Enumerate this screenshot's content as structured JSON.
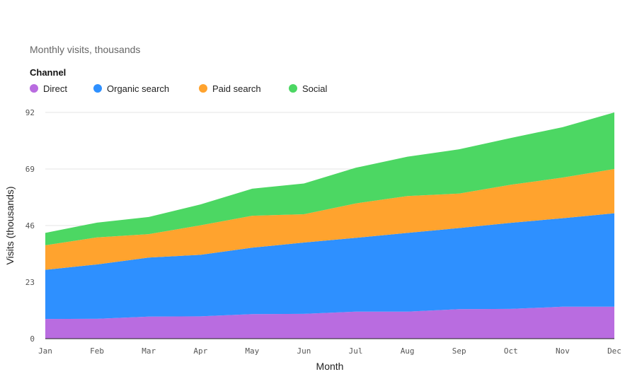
{
  "chart_data": {
    "type": "area",
    "stacked": true,
    "title": "Monthly visits, thousands",
    "legend_title": "Channel",
    "legend_position": "top-left",
    "xlabel": "Month",
    "ylabel": "Visits (thousands)",
    "ylim": [
      0,
      92
    ],
    "yticks": [
      0,
      23,
      46,
      69,
      92
    ],
    "grid": true,
    "categories": [
      "Jan",
      "Feb",
      "Mar",
      "Apr",
      "May",
      "Jun",
      "Jul",
      "Aug",
      "Sep",
      "Oct",
      "Nov",
      "Dec"
    ],
    "series": [
      {
        "name": "Direct",
        "color": "#b96ce0",
        "values": [
          8,
          8.1,
          9,
          9.1,
          10,
          10.1,
          11,
          11,
          12,
          12.1,
          13,
          13
        ]
      },
      {
        "name": "Organic search",
        "color": "#2e90ff",
        "values": [
          20,
          22.1,
          24,
          25,
          27,
          29,
          30,
          32,
          33,
          35,
          36,
          38
        ]
      },
      {
        "name": "Paid search",
        "color": "#ffa32e",
        "values": [
          10,
          11,
          9.5,
          12,
          13,
          11.5,
          14,
          15,
          14,
          15.5,
          16.5,
          18
        ]
      },
      {
        "name": "Social",
        "color": "#4cd763",
        "values": [
          5,
          6,
          7,
          8.5,
          11,
          12.5,
          14.5,
          16,
          18,
          19,
          20.5,
          23
        ]
      }
    ]
  }
}
